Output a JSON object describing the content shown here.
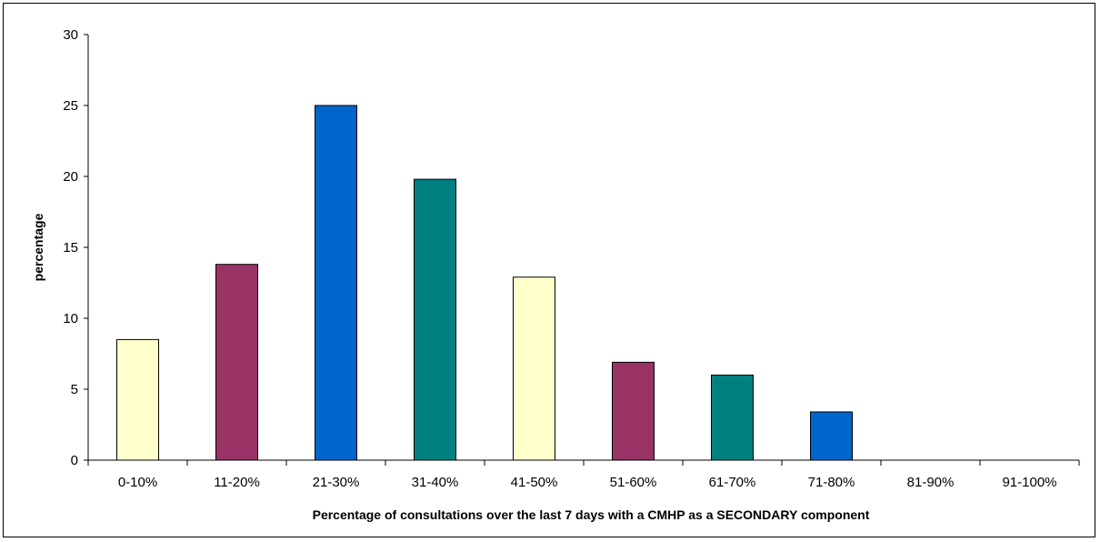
{
  "chart_data": {
    "type": "bar",
    "categories": [
      "0-10%",
      "11-20%",
      "21-30%",
      "31-40%",
      "41-50%",
      "51-60%",
      "61-70%",
      "71-80%",
      "81-90%",
      "91-100%"
    ],
    "values": [
      8.5,
      13.8,
      25.0,
      19.8,
      12.9,
      6.9,
      6.0,
      3.4,
      0,
      0
    ],
    "bar_colors": [
      "#FFFFCC",
      "#993366",
      "#0066CC",
      "#008080",
      "#FFFFCC",
      "#993366",
      "#008080",
      "#0066CC",
      "#FFFFCC",
      "#993366"
    ],
    "xlabel": "Percentage of consultations over the last 7 days with a CMHP as a SECONDARY component",
    "ylabel": "percentage",
    "ylim": [
      0,
      30
    ],
    "yticks": [
      0,
      5,
      10,
      15,
      20,
      25,
      30
    ],
    "grid": false,
    "legend": "none"
  }
}
